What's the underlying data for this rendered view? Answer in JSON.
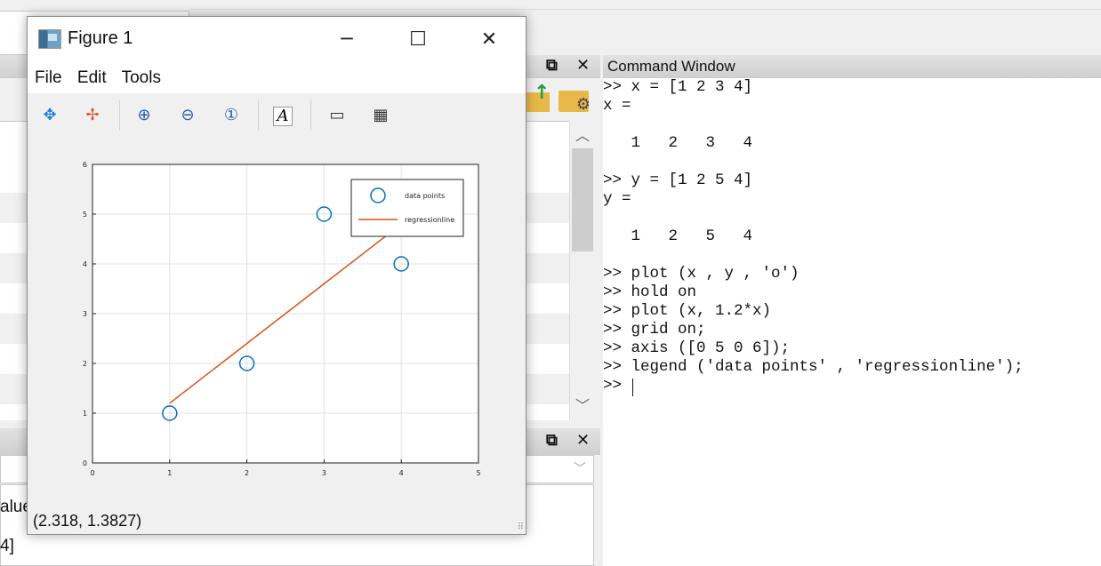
{
  "figure": {
    "title": "Figure 1",
    "menu": [
      "File",
      "Edit",
      "Tools"
    ],
    "status_coords": "(2.318, 1.3827)"
  },
  "command_window": {
    "title": "Command Window",
    "lines": [
      ">> x = [1 2 3 4]",
      "x =",
      "",
      "   1   2   3   4",
      "",
      ">> y = [1 2 5 4]",
      "y =",
      "",
      "   1   2   5   4",
      "",
      ">> plot (x , y , 'o')",
      ">> hold on",
      ">> plot (x, 1.2*x)",
      ">> grid on;",
      ">> axis ([0 5 0 6]);",
      ">> legend ('data points' , 'regressionline');",
      ">> "
    ]
  },
  "workspace": {
    "value_header": "alue",
    "value_cell": "4]"
  },
  "colors": {
    "points": "#0072bd",
    "line": "#d95319"
  },
  "chart_data": {
    "type": "scatter",
    "xlim": [
      0,
      5
    ],
    "ylim": [
      0,
      6
    ],
    "xticks": [
      0,
      1,
      2,
      3,
      4,
      5
    ],
    "yticks": [
      0,
      1,
      2,
      3,
      4,
      5,
      6
    ],
    "grid": true,
    "legend_position": "top-right",
    "series": [
      {
        "name": "data points",
        "kind": "markers",
        "marker": "o",
        "x": [
          1,
          2,
          3,
          4
        ],
        "y": [
          1,
          2,
          5,
          4
        ]
      },
      {
        "name": "regressionline",
        "kind": "line",
        "x": [
          1,
          2,
          3,
          4
        ],
        "y": [
          1.2,
          2.4,
          3.6,
          4.8
        ]
      }
    ]
  }
}
